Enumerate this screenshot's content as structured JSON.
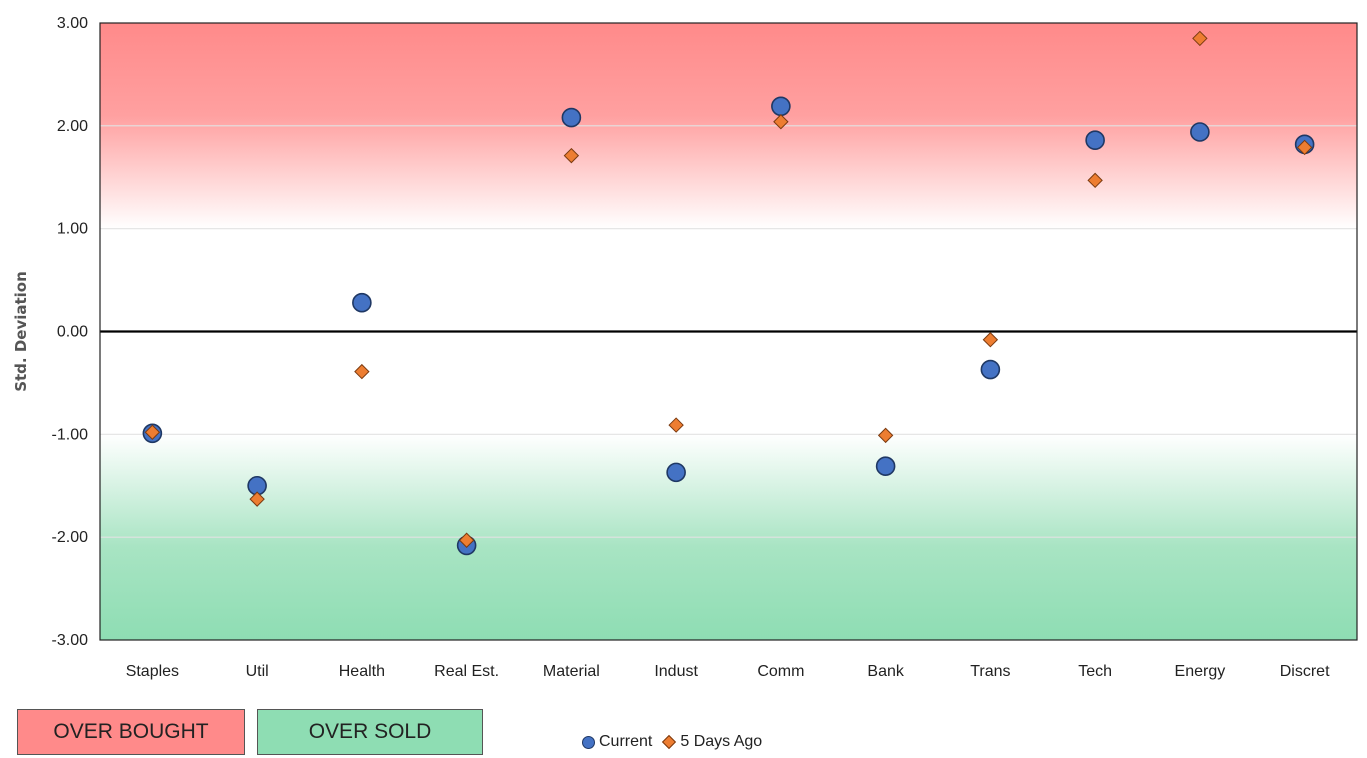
{
  "chart_data": {
    "type": "scatter",
    "title": "",
    "xlabel": "",
    "ylabel": "Std. Deviation",
    "ylim": [
      -3,
      3
    ],
    "y_ticks": [
      "3.00",
      "2.00",
      "1.00",
      "0.00",
      "-1.00",
      "-2.00",
      "-3.00"
    ],
    "y_tick_values": [
      3,
      2,
      1,
      0,
      -1,
      -2,
      -3
    ],
    "categories": [
      "Staples",
      "Util",
      "Health",
      "Real Est.",
      "Material",
      "Indust",
      "Comm",
      "Bank",
      "Trans",
      "Tech",
      "Energy",
      "Discret"
    ],
    "series": [
      {
        "name": "Current",
        "marker": "circle",
        "color": "#4472C4",
        "values": [
          -0.99,
          -1.5,
          0.28,
          -2.08,
          2.08,
          -1.37,
          2.19,
          -1.31,
          -0.37,
          1.86,
          1.94,
          1.82
        ]
      },
      {
        "name": "5 Days Ago",
        "marker": "diamond",
        "color": "#ED7D31",
        "values": [
          -0.98,
          -1.63,
          -0.39,
          -2.03,
          1.71,
          -0.91,
          2.04,
          -1.01,
          -0.08,
          1.47,
          2.85,
          1.79
        ]
      }
    ],
    "zones": [
      {
        "name": "OVER BOUGHT",
        "from": 1,
        "to": 3,
        "color": "#FF8A8A"
      },
      {
        "name": "OVER SOLD",
        "from": -3,
        "to": -1,
        "color": "#8EDDB3"
      }
    ],
    "grid": true,
    "legend_position": "bottom"
  },
  "legend_boxes": {
    "over_bought": "OVER BOUGHT",
    "over_sold": "OVER SOLD"
  },
  "legend": {
    "current": "Current",
    "five_days": "5 Days Ago"
  }
}
